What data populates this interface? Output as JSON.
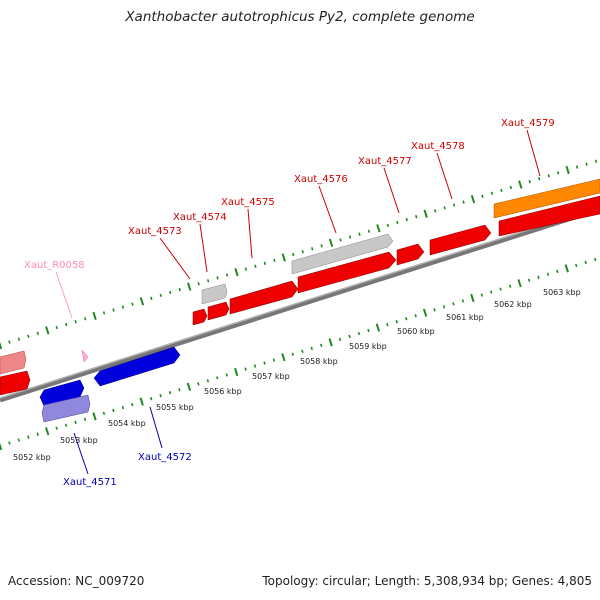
{
  "title": "Xanthobacter autotrophicus Py2, complete genome",
  "footer": {
    "accession": "Accession: NC_009720",
    "summary": "Topology: circular; Length: 5,308,934 bp; Genes: 4,805"
  },
  "colors": {
    "forward_gene": "#ee0000",
    "reverse_gene": "#0000dd",
    "rna_gene": "#9088dd",
    "other_feature": "#c8c8c8",
    "highlight_feature": "#ff8800",
    "pale_feature": "#ee8888",
    "backbone": "#888888",
    "tick": "#228822",
    "forward_label": "#cc0000",
    "reverse_label": "#0000aa",
    "rna_label": "#ff88bb"
  },
  "scale_labels": [
    "5052 kbp",
    "5053 kbp",
    "5054 kbp",
    "5055 kbp",
    "5056 kbp",
    "5057 kbp",
    "5058 kbp",
    "5059 kbp",
    "5060 kbp",
    "5061 kbp",
    "5062 kbp",
    "5063 kbp"
  ],
  "gene_labels": [
    {
      "name": "Xaut_R0058",
      "strand": "rna"
    },
    {
      "name": "Xaut_4573",
      "strand": "forward"
    },
    {
      "name": "Xaut_4574",
      "strand": "forward"
    },
    {
      "name": "Xaut_4575",
      "strand": "forward"
    },
    {
      "name": "Xaut_4576",
      "strand": "forward"
    },
    {
      "name": "Xaut_4577",
      "strand": "forward"
    },
    {
      "name": "Xaut_4578",
      "strand": "forward"
    },
    {
      "name": "Xaut_4579",
      "strand": "forward"
    },
    {
      "name": "Xaut_4571",
      "strand": "reverse"
    },
    {
      "name": "Xaut_4572",
      "strand": "reverse"
    }
  ]
}
